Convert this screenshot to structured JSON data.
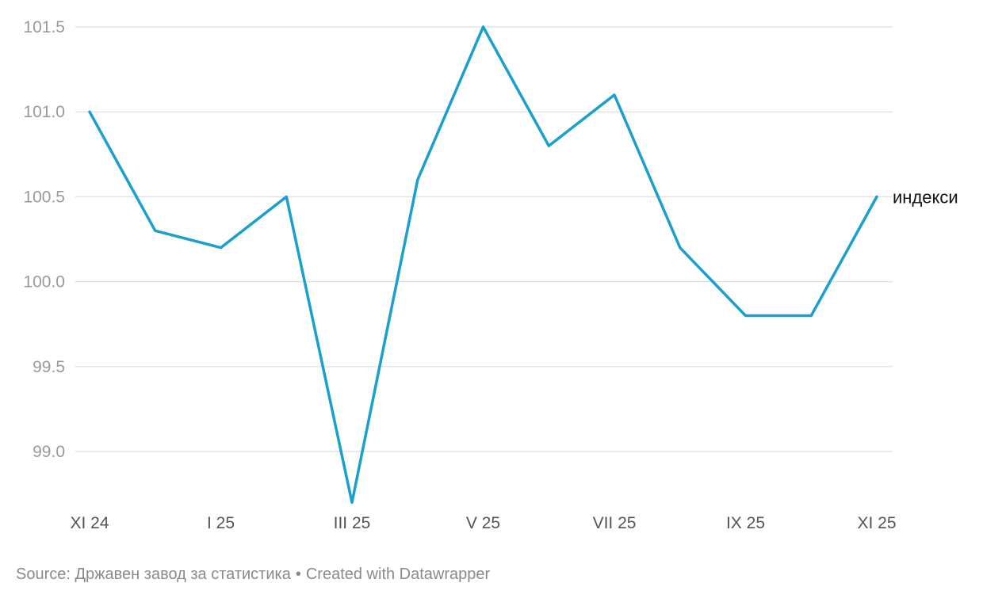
{
  "colors": {
    "line": "#1a9fcf",
    "grid": "#dedede",
    "y_tick_text": "#9a9a9a",
    "x_tick_text": "#555555",
    "footer_text": "#8a8a8a"
  },
  "chart_data": {
    "type": "line",
    "x": [
      "XI 24",
      "XII 24",
      "I 25",
      "II 25",
      "III 25",
      "IV 25",
      "V 25",
      "VI 25",
      "VII 25",
      "VIII 25",
      "IX 25",
      "X 25",
      "XI 25"
    ],
    "series": [
      {
        "name": "индекси",
        "values": [
          101.0,
          100.3,
          100.2,
          100.5,
          98.7,
          100.6,
          101.5,
          100.8,
          101.1,
          100.2,
          99.8,
          99.8,
          100.5
        ]
      }
    ],
    "x_tick_labels": [
      "XI 24",
      "I 25",
      "III 25",
      "V 25",
      "VII 25",
      "IX 25",
      "XI 25"
    ],
    "y_ticks": [
      "99.0",
      "99.5",
      "100.0",
      "100.5",
      "101.0",
      "101.5"
    ],
    "ylim": [
      98.7,
      101.5
    ],
    "grid": true,
    "legend": "direct label at line end"
  },
  "footer": {
    "source": "Source: Државен завод за статистика",
    "separator": "•",
    "credit": "Created with Datawrapper"
  }
}
